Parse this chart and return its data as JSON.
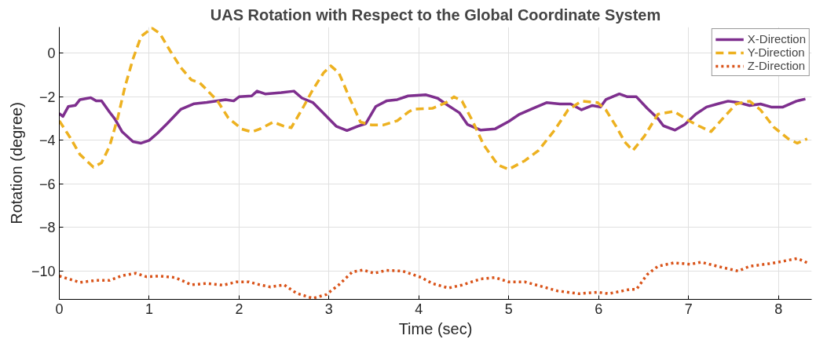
{
  "chart_data": {
    "type": "line",
    "title": "UAS Rotation with Respect to the Global Coordinate System",
    "xlabel": "Time (sec)",
    "ylabel": "Rotation (degree)",
    "xlim": [
      0,
      8.37
    ],
    "ylim": [
      -11.3,
      1.2
    ],
    "xticks": [
      0,
      1,
      2,
      3,
      4,
      5,
      6,
      7,
      8
    ],
    "yticks": [
      -10,
      -8,
      -6,
      -4,
      -2,
      0
    ],
    "grid": true,
    "legend": "top right",
    "series": [
      {
        "name": "X-Direction",
        "color": "#7e2f8e",
        "line_style": "solid",
        "x": [
          0,
          0.04,
          0.1,
          0.18,
          0.23,
          0.35,
          0.41,
          0.47,
          0.56,
          0.62,
          0.7,
          0.82,
          0.91,
          1.0,
          1.09,
          1.2,
          1.35,
          1.5,
          1.64,
          1.85,
          1.94,
          2.0,
          2.14,
          2.2,
          2.29,
          2.47,
          2.61,
          2.7,
          2.82,
          2.96,
          3.08,
          3.2,
          3.32,
          3.41,
          3.52,
          3.64,
          3.76,
          3.88,
          4.08,
          4.21,
          4.3,
          4.45,
          4.54,
          4.69,
          4.85,
          5.0,
          5.12,
          5.27,
          5.42,
          5.57,
          5.69,
          5.81,
          5.93,
          6.02,
          6.08,
          6.23,
          6.32,
          6.42,
          6.54,
          6.66,
          6.72,
          6.85,
          6.96,
          7.08,
          7.2,
          7.32,
          7.44,
          7.56,
          7.68,
          7.8,
          7.92,
          8.05,
          8.2,
          8.3
        ],
        "values": [
          -2.77,
          -2.9,
          -2.45,
          -2.39,
          -2.13,
          -2.04,
          -2.19,
          -2.19,
          -2.71,
          -3.03,
          -3.61,
          -4.06,
          -4.13,
          -4.0,
          -3.68,
          -3.23,
          -2.58,
          -2.32,
          -2.26,
          -2.13,
          -2.19,
          -2.0,
          -1.96,
          -1.74,
          -1.87,
          -1.81,
          -1.74,
          -2.06,
          -2.26,
          -2.84,
          -3.35,
          -3.55,
          -3.35,
          -3.23,
          -2.45,
          -2.19,
          -2.13,
          -1.96,
          -1.91,
          -2.07,
          -2.33,
          -2.73,
          -3.27,
          -3.53,
          -3.47,
          -3.13,
          -2.8,
          -2.53,
          -2.27,
          -2.33,
          -2.33,
          -2.6,
          -2.4,
          -2.47,
          -2.13,
          -1.87,
          -2.0,
          -2.0,
          -2.53,
          -3.0,
          -3.33,
          -3.53,
          -3.27,
          -2.8,
          -2.47,
          -2.33,
          -2.2,
          -2.27,
          -2.4,
          -2.33,
          -2.47,
          -2.47,
          -2.2,
          -2.1
        ]
      },
      {
        "name": "Y-Direction",
        "color": "#edb120",
        "line_style": "dashed",
        "x": [
          0,
          0.12,
          0.23,
          0.38,
          0.47,
          0.56,
          0.65,
          0.73,
          0.82,
          0.91,
          1.03,
          1.12,
          1.23,
          1.35,
          1.47,
          1.56,
          1.64,
          1.76,
          1.88,
          2.03,
          2.14,
          2.23,
          2.38,
          2.5,
          2.58,
          2.7,
          2.82,
          2.94,
          3.02,
          3.11,
          3.23,
          3.35,
          3.47,
          3.61,
          3.76,
          3.88,
          3.94,
          4.15,
          4.3,
          4.39,
          4.48,
          4.6,
          4.72,
          4.88,
          5.0,
          5.18,
          5.33,
          5.51,
          5.66,
          5.81,
          5.99,
          6.08,
          6.2,
          6.29,
          6.38,
          6.51,
          6.66,
          6.84,
          6.99,
          7.11,
          7.25,
          7.38,
          7.53,
          7.68,
          7.8,
          7.95,
          8.11,
          8.21,
          8.32
        ],
        "values": [
          -3.1,
          -3.87,
          -4.65,
          -5.23,
          -5.03,
          -4.26,
          -2.97,
          -1.55,
          -0.26,
          0.77,
          1.16,
          0.9,
          0.13,
          -0.65,
          -1.23,
          -1.35,
          -1.68,
          -2.19,
          -2.97,
          -3.48,
          -3.61,
          -3.48,
          -3.16,
          -3.35,
          -3.42,
          -2.58,
          -1.68,
          -0.9,
          -0.58,
          -0.9,
          -2.06,
          -3.16,
          -3.29,
          -3.29,
          -3.1,
          -2.71,
          -2.57,
          -2.53,
          -2.27,
          -2.0,
          -2.2,
          -3.13,
          -4.2,
          -5.13,
          -5.33,
          -4.93,
          -4.47,
          -3.53,
          -2.6,
          -2.2,
          -2.27,
          -2.6,
          -3.4,
          -4.07,
          -4.47,
          -3.8,
          -2.8,
          -2.67,
          -3.07,
          -3.33,
          -3.6,
          -3.0,
          -2.33,
          -2.2,
          -2.6,
          -3.4,
          -3.93,
          -4.13,
          -3.93
        ]
      },
      {
        "name": "Z-Direction",
        "color": "#d95319",
        "line_style": "dotted",
        "x": [
          0,
          0.23,
          0.41,
          0.56,
          0.7,
          0.85,
          0.97,
          1.12,
          1.29,
          1.47,
          1.64,
          1.82,
          1.97,
          2.11,
          2.23,
          2.35,
          2.5,
          2.64,
          2.82,
          2.97,
          3.11,
          3.26,
          3.38,
          3.5,
          3.64,
          3.82,
          4.03,
          4.15,
          4.33,
          4.48,
          4.69,
          4.85,
          5.0,
          5.18,
          5.36,
          5.54,
          5.78,
          5.99,
          6.11,
          6.35,
          6.42,
          6.54,
          6.66,
          6.84,
          7.02,
          7.14,
          7.32,
          7.55,
          7.68,
          7.92,
          8.05,
          8.21,
          8.32
        ],
        "values": [
          -10.23,
          -10.52,
          -10.43,
          -10.43,
          -10.21,
          -10.1,
          -10.26,
          -10.23,
          -10.3,
          -10.63,
          -10.57,
          -10.65,
          -10.5,
          -10.5,
          -10.63,
          -10.73,
          -10.63,
          -11.02,
          -11.25,
          -11.08,
          -10.63,
          -10.04,
          -9.95,
          -10.1,
          -9.97,
          -10.0,
          -10.3,
          -10.57,
          -10.78,
          -10.64,
          -10.36,
          -10.3,
          -10.5,
          -10.5,
          -10.7,
          -10.91,
          -11.04,
          -10.97,
          -11.04,
          -10.84,
          -10.84,
          -10.16,
          -9.78,
          -9.62,
          -9.69,
          -9.59,
          -9.78,
          -10.0,
          -9.78,
          -9.65,
          -9.55,
          -9.42,
          -9.62
        ]
      }
    ]
  }
}
